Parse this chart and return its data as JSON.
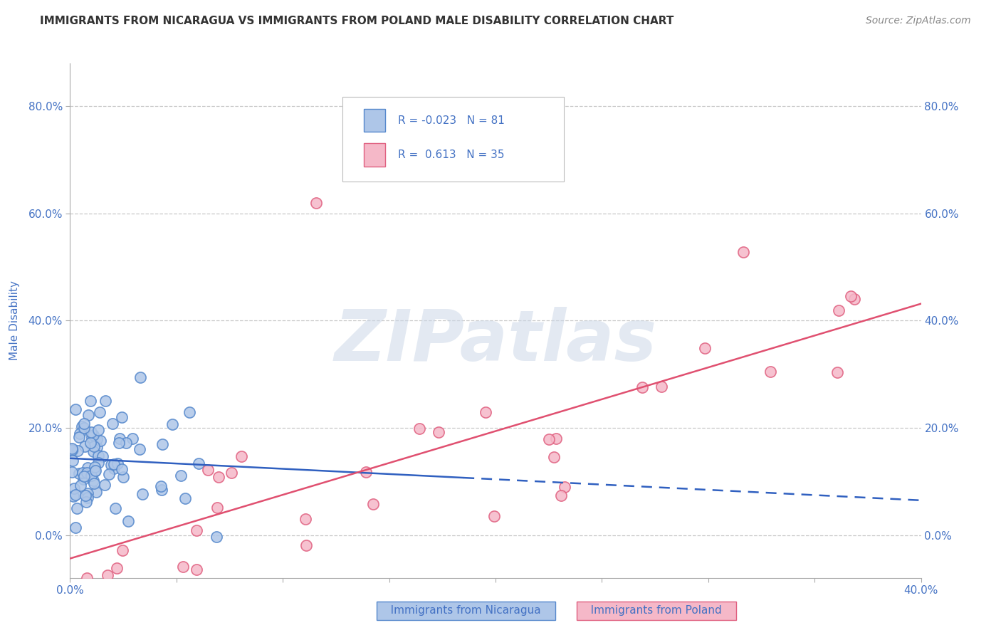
{
  "title": "IMMIGRANTS FROM NICARAGUA VS IMMIGRANTS FROM POLAND MALE DISABILITY CORRELATION CHART",
  "source": "Source: ZipAtlas.com",
  "ylabel": "Male Disability",
  "yticks": [
    "0.0%",
    "20.0%",
    "40.0%",
    "60.0%",
    "80.0%"
  ],
  "ytick_vals": [
    0.0,
    0.2,
    0.4,
    0.6,
    0.8
  ],
  "xrange": [
    0.0,
    0.4
  ],
  "yrange": [
    -0.08,
    0.88
  ],
  "series1_label": "Immigrants from Nicaragua",
  "series2_label": "Immigrants from Poland",
  "series1_color": "#aec6e8",
  "series2_color": "#f5b8c8",
  "series1_edge": "#5588cc",
  "series2_edge": "#e06080",
  "trend1_color": "#3060c0",
  "trend2_color": "#e05070",
  "R1": -0.023,
  "N1": 81,
  "R2": 0.613,
  "N2": 35,
  "legend_text_color": "#4472c4",
  "watermark": "ZIPatlas",
  "background_color": "#ffffff",
  "grid_color": "#c8c8c8",
  "title_color": "#333333",
  "axis_label_color": "#4472c4",
  "source_color": "#888888"
}
